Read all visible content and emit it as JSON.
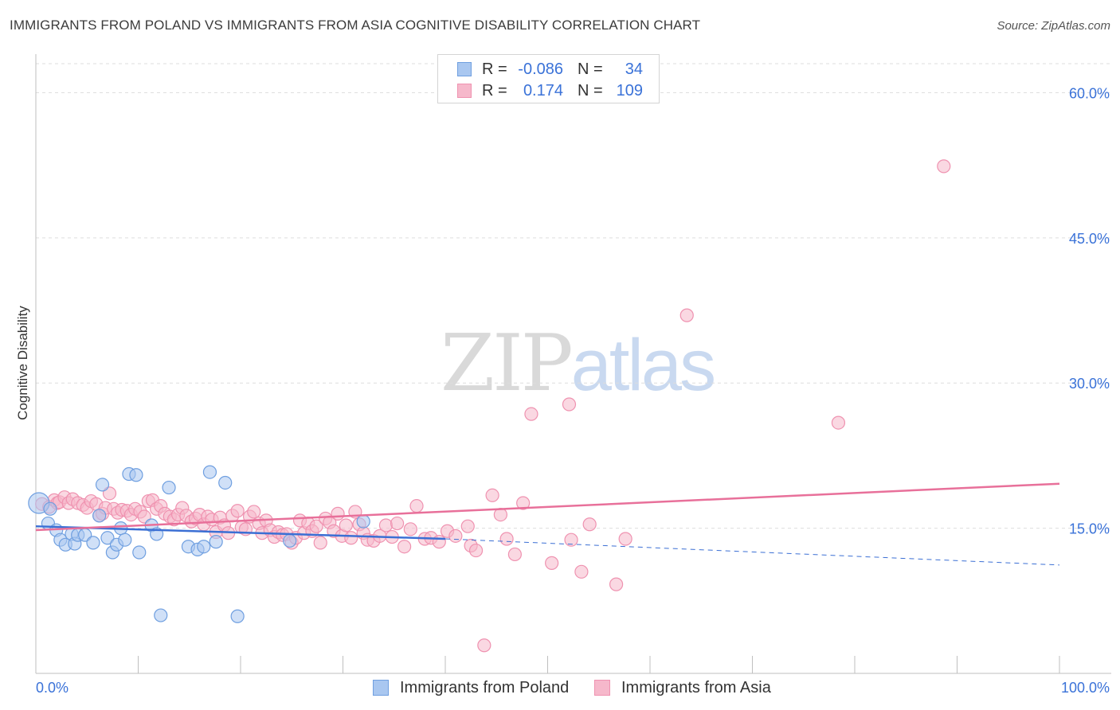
{
  "title": "IMMIGRANTS FROM POLAND VS IMMIGRANTS FROM ASIA COGNITIVE DISABILITY CORRELATION CHART",
  "source": "Source: ZipAtlas.com",
  "watermark": {
    "zip": "ZIP",
    "atlas": "atlas"
  },
  "legend": {
    "poland": {
      "r_label": "R =",
      "r_value": "-0.086",
      "n_label": "N =",
      "n_value": "34"
    },
    "asia": {
      "r_label": "R =",
      "r_value": "0.174",
      "n_label": "N =",
      "n_value": "109"
    }
  },
  "bottom_legend": {
    "poland": "Immigrants from Poland",
    "asia": "Immigrants from Asia"
  },
  "colors": {
    "poland_fill": "#a9c7f0",
    "poland_stroke": "#6f9fe0",
    "poland_line": "#3b6fd4",
    "asia_fill": "#f6b8cb",
    "asia_stroke": "#ef92b0",
    "asia_line": "#e8709a",
    "tick_label": "#3a72d8",
    "grid": "#dedede"
  },
  "chart_data": {
    "type": "scatter",
    "title": "IMMIGRANTS FROM POLAND VS IMMIGRANTS FROM ASIA COGNITIVE DISABILITY CORRELATION CHART",
    "xlabel": "",
    "ylabel": "Cognitive Disability",
    "xlim": [
      0,
      100
    ],
    "ylim": [
      0,
      63
    ],
    "x_tick_labels": [
      "0.0%",
      "100.0%"
    ],
    "y_ticks": [
      15,
      30,
      45,
      60
    ],
    "y_tick_labels": [
      "15.0%",
      "30.0%",
      "45.0%",
      "60.0%"
    ],
    "series": [
      {
        "name": "Immigrants from Poland",
        "r": -0.086,
        "n": 34,
        "trend": {
          "x0": 0,
          "y0": 15.2,
          "x1": 40,
          "y1": 13.9,
          "dash_x1": 100,
          "dash_y1": 11.2
        },
        "points": [
          [
            0.3,
            17.6
          ],
          [
            1.2,
            15.5
          ],
          [
            1.4,
            17.0
          ],
          [
            2.0,
            14.8
          ],
          [
            2.4,
            13.8
          ],
          [
            2.9,
            13.3
          ],
          [
            3.5,
            14.4
          ],
          [
            3.8,
            13.4
          ],
          [
            4.1,
            14.3
          ],
          [
            4.8,
            14.3
          ],
          [
            5.6,
            13.5
          ],
          [
            6.2,
            16.3
          ],
          [
            6.5,
            19.5
          ],
          [
            7.0,
            14.0
          ],
          [
            7.5,
            12.5
          ],
          [
            7.9,
            13.3
          ],
          [
            8.3,
            15.0
          ],
          [
            8.7,
            13.8
          ],
          [
            9.1,
            20.6
          ],
          [
            9.8,
            20.5
          ],
          [
            10.1,
            12.5
          ],
          [
            11.3,
            15.3
          ],
          [
            11.8,
            14.4
          ],
          [
            12.2,
            6.0
          ],
          [
            13.0,
            19.2
          ],
          [
            14.9,
            13.1
          ],
          [
            15.8,
            12.8
          ],
          [
            16.4,
            13.1
          ],
          [
            17.0,
            20.8
          ],
          [
            17.6,
            13.6
          ],
          [
            18.5,
            19.7
          ],
          [
            19.7,
            5.9
          ],
          [
            24.8,
            13.7
          ],
          [
            32.0,
            15.7
          ]
        ]
      },
      {
        "name": "Immigrants from Asia",
        "r": 0.174,
        "n": 109,
        "trend": {
          "x0": 0,
          "y0": 14.8,
          "x1": 100,
          "y1": 19.6
        },
        "points": [
          [
            0.6,
            17.5
          ],
          [
            1.3,
            17.2
          ],
          [
            1.8,
            17.9
          ],
          [
            2.1,
            17.6
          ],
          [
            2.3,
            17.7
          ],
          [
            2.8,
            18.2
          ],
          [
            3.2,
            17.6
          ],
          [
            3.6,
            18.0
          ],
          [
            4.1,
            17.6
          ],
          [
            4.6,
            17.4
          ],
          [
            5.0,
            17.1
          ],
          [
            5.4,
            17.8
          ],
          [
            5.9,
            17.5
          ],
          [
            6.2,
            16.3
          ],
          [
            6.5,
            16.5
          ],
          [
            6.8,
            17.1
          ],
          [
            7.2,
            18.6
          ],
          [
            7.6,
            17.0
          ],
          [
            8.0,
            16.6
          ],
          [
            8.4,
            16.9
          ],
          [
            8.9,
            16.8
          ],
          [
            9.3,
            16.4
          ],
          [
            9.7,
            17.0
          ],
          [
            10.2,
            16.7
          ],
          [
            10.6,
            16.2
          ],
          [
            11.0,
            17.8
          ],
          [
            11.4,
            17.9
          ],
          [
            11.8,
            17.0
          ],
          [
            12.2,
            17.3
          ],
          [
            12.6,
            16.5
          ],
          [
            13.1,
            16.2
          ],
          [
            13.5,
            15.9
          ],
          [
            13.9,
            16.4
          ],
          [
            14.3,
            17.1
          ],
          [
            14.7,
            16.3
          ],
          [
            15.2,
            15.7
          ],
          [
            15.6,
            16.0
          ],
          [
            16.0,
            16.4
          ],
          [
            16.4,
            15.4
          ],
          [
            16.8,
            16.2
          ],
          [
            17.2,
            15.9
          ],
          [
            17.6,
            14.6
          ],
          [
            18.0,
            16.1
          ],
          [
            18.4,
            15.3
          ],
          [
            18.8,
            14.5
          ],
          [
            19.2,
            16.3
          ],
          [
            19.7,
            16.8
          ],
          [
            20.1,
            15.1
          ],
          [
            20.5,
            14.9
          ],
          [
            20.9,
            16.2
          ],
          [
            21.3,
            16.7
          ],
          [
            21.8,
            15.5
          ],
          [
            22.1,
            14.5
          ],
          [
            22.5,
            15.8
          ],
          [
            22.9,
            14.8
          ],
          [
            23.3,
            14.1
          ],
          [
            23.7,
            14.6
          ],
          [
            24.1,
            14.3
          ],
          [
            24.5,
            14.4
          ],
          [
            25.0,
            13.5
          ],
          [
            25.4,
            14.0
          ],
          [
            25.8,
            15.8
          ],
          [
            26.2,
            14.5
          ],
          [
            26.6,
            15.5
          ],
          [
            27.0,
            14.7
          ],
          [
            27.4,
            15.2
          ],
          [
            27.8,
            13.5
          ],
          [
            28.3,
            16.0
          ],
          [
            28.7,
            15.6
          ],
          [
            29.1,
            14.7
          ],
          [
            29.5,
            16.5
          ],
          [
            29.9,
            14.2
          ],
          [
            30.3,
            15.3
          ],
          [
            30.8,
            14.0
          ],
          [
            31.2,
            16.7
          ],
          [
            31.6,
            15.4
          ],
          [
            32.0,
            14.5
          ],
          [
            32.4,
            13.8
          ],
          [
            33.0,
            13.7
          ],
          [
            33.6,
            14.2
          ],
          [
            34.2,
            15.3
          ],
          [
            34.8,
            14.1
          ],
          [
            35.3,
            15.5
          ],
          [
            36.0,
            13.1
          ],
          [
            36.6,
            14.9
          ],
          [
            37.2,
            17.3
          ],
          [
            38.0,
            13.9
          ],
          [
            38.6,
            14.0
          ],
          [
            39.4,
            13.6
          ],
          [
            40.2,
            14.7
          ],
          [
            41.0,
            14.2
          ],
          [
            42.2,
            15.2
          ],
          [
            42.5,
            13.2
          ],
          [
            43.0,
            12.7
          ],
          [
            43.8,
            2.9
          ],
          [
            44.6,
            18.4
          ],
          [
            45.4,
            16.4
          ],
          [
            46.0,
            13.9
          ],
          [
            46.8,
            12.3
          ],
          [
            47.6,
            17.6
          ],
          [
            48.4,
            26.8
          ],
          [
            50.4,
            11.4
          ],
          [
            52.1,
            27.8
          ],
          [
            52.3,
            13.8
          ],
          [
            53.3,
            10.5
          ],
          [
            54.1,
            15.4
          ],
          [
            56.7,
            9.2
          ],
          [
            57.6,
            13.9
          ],
          [
            63.6,
            37.0
          ],
          [
            78.4,
            25.9
          ],
          [
            88.7,
            52.4
          ]
        ]
      }
    ]
  }
}
